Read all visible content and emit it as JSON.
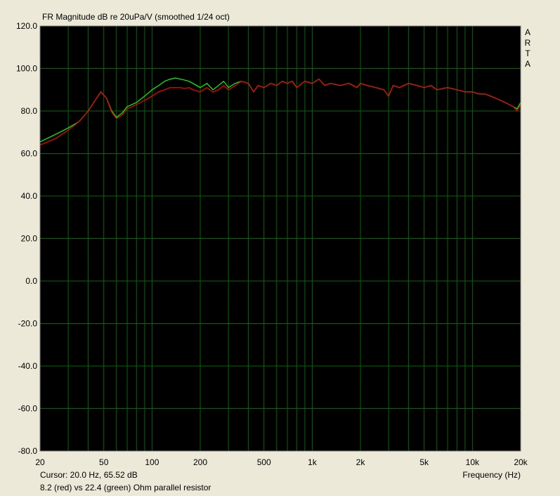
{
  "chart_data": {
    "type": "line",
    "title": "FR Magnitude dB re 20uPa/V (smoothed 1/24 oct)",
    "xlabel": "Frequency (Hz)",
    "ylabel": "",
    "xscale": "log",
    "xlim": [
      20,
      20000
    ],
    "ylim": [
      -80,
      120
    ],
    "grid": true,
    "background": "#000000",
    "grid_color": "#006a00",
    "y_ticks": [
      "120.0",
      "100.0",
      "80.0",
      "60.0",
      "40.0",
      "20.0",
      "0.0",
      "-20.0",
      "-40.0",
      "-60.0",
      "-80.0"
    ],
    "x_ticks": [
      {
        "value": 20,
        "label": "20"
      },
      {
        "value": 50,
        "label": "50"
      },
      {
        "value": 100,
        "label": "100"
      },
      {
        "value": 200,
        "label": "200"
      },
      {
        "value": 500,
        "label": "500"
      },
      {
        "value": 1000,
        "label": "1k"
      },
      {
        "value": 2000,
        "label": "2k"
      },
      {
        "value": 5000,
        "label": "5k"
      },
      {
        "value": 10000,
        "label": "10k"
      },
      {
        "value": 20000,
        "label": "20k"
      }
    ],
    "series": [
      {
        "color": "#00ff00",
        "x": [
          20,
          25,
          30,
          35,
          40,
          45,
          48,
          52,
          56,
          60,
          65,
          70,
          80,
          90,
          100,
          110,
          120,
          130,
          140,
          150,
          160,
          170,
          180,
          200,
          220,
          240,
          260,
          280,
          300,
          330,
          360,
          400,
          430,
          460,
          500,
          550,
          600,
          650,
          700,
          750,
          800,
          900,
          1000,
          1100,
          1200,
          1300,
          1500,
          1700,
          1900,
          2000,
          2200,
          2500,
          2800,
          3000,
          3200,
          3500,
          4000,
          4500,
          5000,
          5500,
          6000,
          7000,
          8000,
          9000,
          10000,
          11000,
          12000,
          13000,
          14000,
          15000,
          16000,
          17000,
          18000,
          19000,
          20000
        ],
        "y": [
          65.5,
          69,
          72,
          75,
          80,
          86,
          89,
          86,
          80,
          77,
          79,
          82,
          84,
          87,
          90,
          92,
          94,
          95,
          95.5,
          95,
          94.5,
          94,
          93,
          91,
          93,
          90,
          92,
          94,
          91,
          93,
          94,
          93,
          89,
          92,
          91,
          93,
          92,
          94,
          93,
          94,
          91,
          94,
          93,
          95,
          92,
          93,
          92,
          93,
          91,
          93,
          92,
          91,
          90,
          87,
          92,
          91,
          93,
          92,
          91,
          92,
          90,
          91,
          90,
          89,
          89,
          88,
          88,
          87,
          86,
          85,
          84,
          83,
          82,
          81,
          84
        ]
      },
      {
        "color": "#ff0000",
        "x": [
          20,
          25,
          30,
          35,
          40,
          45,
          48,
          52,
          56,
          60,
          65,
          70,
          80,
          90,
          100,
          110,
          120,
          130,
          140,
          150,
          160,
          170,
          180,
          200,
          220,
          240,
          260,
          280,
          300,
          330,
          360,
          400,
          430,
          460,
          500,
          550,
          600,
          650,
          700,
          750,
          800,
          900,
          1000,
          1100,
          1200,
          1300,
          1500,
          1700,
          1900,
          2000,
          2200,
          2500,
          2800,
          3000,
          3200,
          3500,
          4000,
          4500,
          5000,
          5500,
          6000,
          7000,
          8000,
          9000,
          10000,
          11000,
          12000,
          13000,
          14000,
          15000,
          16000,
          17000,
          18000,
          19000,
          20000
        ],
        "y": [
          64,
          67,
          71,
          75,
          80,
          86,
          89,
          86,
          79.5,
          76.5,
          78,
          81,
          83,
          85,
          87,
          89,
          90,
          91,
          91,
          91,
          90.5,
          91,
          90,
          89,
          91,
          89,
          90,
          92,
          90,
          92,
          94,
          93,
          89,
          92,
          91,
          93,
          92,
          94,
          93,
          94,
          91,
          94,
          93,
          95,
          92,
          93,
          92,
          93,
          91,
          93,
          92,
          91,
          90,
          87,
          92,
          91,
          93,
          92,
          91,
          92,
          90,
          91,
          90,
          89,
          89,
          88,
          88,
          87,
          86,
          85,
          84,
          83,
          82,
          80,
          83
        ]
      }
    ],
    "side_label": [
      "A",
      "R",
      "T",
      "A"
    ]
  },
  "cursor_readout": "Cursor: 20.0 Hz, 65.52 dB",
  "legend_text": "8.2 (red) vs 22.4 (green) Ohm parallel resistor"
}
